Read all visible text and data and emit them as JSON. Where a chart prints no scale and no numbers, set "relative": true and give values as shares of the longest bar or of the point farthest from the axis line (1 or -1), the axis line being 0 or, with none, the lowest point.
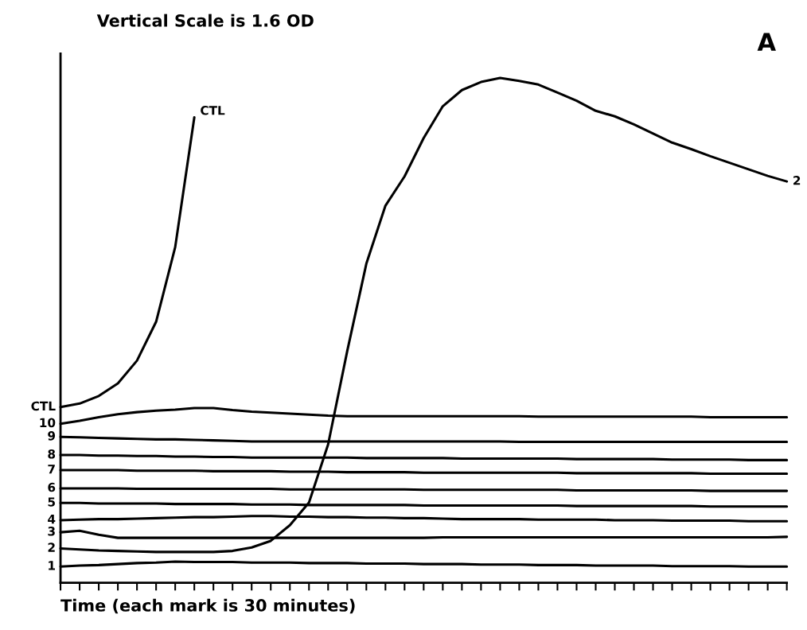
{
  "chart_data": {
    "type": "line",
    "title": "Vertical Scale is 1.6 OD",
    "xlabel": "Time (each mark is 30 minutes)",
    "relative": true,
    "categories": [
      null,
      null,
      null,
      null,
      null,
      null,
      null,
      null,
      null,
      null,
      null,
      null,
      null,
      null,
      null,
      null,
      null,
      null,
      null,
      null,
      null,
      null,
      null,
      null,
      null,
      null,
      null,
      null,
      null,
      null,
      null,
      null,
      null,
      null,
      null,
      null,
      null,
      null,
      null
    ],
    "grid": false,
    "legend": false,
    "marker": "none",
    "line_style": "solid",
    "series": [
      {
        "name": "CTL",
        "color": "#000000",
        "values": [
          0.348,
          0.355,
          0.37,
          0.395,
          0.44,
          0.517,
          0.665,
          0.922,
          null,
          null,
          null,
          null,
          null,
          null,
          null,
          null,
          null,
          null,
          null,
          null,
          null,
          null,
          null,
          null,
          null,
          null,
          null,
          null,
          null,
          null,
          null,
          null,
          null,
          null,
          null,
          null,
          null,
          null,
          null
        ]
      },
      {
        "name": "10",
        "color": "#000000",
        "values": [
          0.315,
          0.321,
          0.328,
          0.334,
          0.338,
          0.341,
          0.343,
          0.346,
          0.346,
          0.342,
          0.339,
          0.337,
          0.335,
          0.333,
          0.331,
          0.33,
          0.33,
          0.33,
          0.33,
          0.33,
          0.33,
          0.33,
          0.33,
          0.33,
          0.33,
          0.329,
          0.329,
          0.329,
          0.329,
          0.329,
          0.329,
          0.329,
          0.329,
          0.329,
          0.328,
          0.328,
          0.328,
          0.328,
          0.328
        ]
      },
      {
        "name": "9",
        "color": "#000000",
        "values": [
          0.289,
          0.288,
          0.287,
          0.286,
          0.285,
          0.284,
          0.284,
          0.283,
          0.282,
          0.281,
          0.28,
          0.28,
          0.28,
          0.28,
          0.28,
          0.28,
          0.28,
          0.28,
          0.28,
          0.28,
          0.28,
          0.28,
          0.28,
          0.28,
          0.279,
          0.279,
          0.279,
          0.279,
          0.279,
          0.279,
          0.279,
          0.279,
          0.279,
          0.279,
          0.279,
          0.279,
          0.279,
          0.279,
          0.279
        ]
      },
      {
        "name": "8",
        "color": "#000000",
        "values": [
          0.253,
          0.253,
          0.252,
          0.252,
          0.251,
          0.251,
          0.25,
          0.25,
          0.249,
          0.249,
          0.248,
          0.248,
          0.248,
          0.248,
          0.248,
          0.248,
          0.247,
          0.247,
          0.247,
          0.247,
          0.247,
          0.246,
          0.246,
          0.246,
          0.246,
          0.246,
          0.246,
          0.245,
          0.245,
          0.245,
          0.245,
          0.245,
          0.244,
          0.244,
          0.244,
          0.244,
          0.243,
          0.243,
          0.243
        ]
      },
      {
        "name": "7",
        "color": "#000000",
        "values": [
          0.223,
          0.223,
          0.223,
          0.223,
          0.222,
          0.222,
          0.222,
          0.222,
          0.221,
          0.221,
          0.221,
          0.221,
          0.22,
          0.22,
          0.22,
          0.219,
          0.219,
          0.219,
          0.219,
          0.218,
          0.218,
          0.218,
          0.218,
          0.218,
          0.218,
          0.218,
          0.218,
          0.217,
          0.217,
          0.217,
          0.217,
          0.217,
          0.217,
          0.217,
          0.216,
          0.216,
          0.216,
          0.216,
          0.216
        ]
      },
      {
        "name": "6",
        "color": "#000000",
        "values": [
          0.187,
          0.187,
          0.187,
          0.187,
          0.186,
          0.186,
          0.186,
          0.186,
          0.186,
          0.186,
          0.186,
          0.186,
          0.185,
          0.185,
          0.185,
          0.185,
          0.185,
          0.185,
          0.185,
          0.184,
          0.184,
          0.184,
          0.184,
          0.184,
          0.184,
          0.184,
          0.184,
          0.183,
          0.183,
          0.183,
          0.183,
          0.183,
          0.183,
          0.183,
          0.182,
          0.182,
          0.182,
          0.182,
          0.182
        ]
      },
      {
        "name": "5",
        "color": "#000000",
        "values": [
          0.158,
          0.158,
          0.157,
          0.157,
          0.157,
          0.157,
          0.156,
          0.156,
          0.156,
          0.156,
          0.155,
          0.155,
          0.155,
          0.154,
          0.154,
          0.154,
          0.154,
          0.154,
          0.154,
          0.153,
          0.153,
          0.153,
          0.153,
          0.153,
          0.153,
          0.153,
          0.153,
          0.152,
          0.152,
          0.152,
          0.152,
          0.152,
          0.152,
          0.152,
          0.151,
          0.151,
          0.151,
          0.151,
          0.151
        ]
      },
      {
        "name": "4",
        "color": "#000000",
        "values": [
          0.124,
          0.125,
          0.126,
          0.126,
          0.127,
          0.128,
          0.129,
          0.13,
          0.13,
          0.131,
          0.132,
          0.132,
          0.131,
          0.131,
          0.13,
          0.13,
          0.129,
          0.129,
          0.128,
          0.128,
          0.127,
          0.126,
          0.126,
          0.126,
          0.126,
          0.125,
          0.125,
          0.125,
          0.125,
          0.124,
          0.124,
          0.124,
          0.123,
          0.123,
          0.123,
          0.123,
          0.122,
          0.122,
          0.122
        ]
      },
      {
        "name": "3",
        "color": "#000000",
        "values": [
          0.1,
          0.103,
          0.095,
          0.089,
          0.089,
          0.089,
          0.089,
          0.089,
          0.089,
          0.089,
          0.089,
          0.089,
          0.089,
          0.089,
          0.089,
          0.089,
          0.089,
          0.089,
          0.089,
          0.089,
          0.09,
          0.09,
          0.09,
          0.09,
          0.09,
          0.09,
          0.09,
          0.09,
          0.09,
          0.09,
          0.09,
          0.09,
          0.09,
          0.09,
          0.09,
          0.09,
          0.09,
          0.09,
          0.091
        ]
      },
      {
        "name": "2",
        "color": "#000000",
        "values": [
          0.068,
          0.066,
          0.064,
          0.063,
          0.062,
          0.061,
          0.061,
          0.061,
          0.061,
          0.063,
          0.07,
          0.083,
          0.114,
          0.159,
          0.274,
          0.459,
          0.632,
          0.747,
          0.805,
          0.881,
          0.944,
          0.976,
          0.992,
          1,
          0.994,
          0.987,
          0.971,
          0.955,
          0.935,
          0.924,
          0.908,
          0.89,
          0.872,
          0.859,
          0.845,
          0.832,
          0.819,
          0.806,
          0.795
        ]
      },
      {
        "name": "1",
        "color": "#000000",
        "values": [
          0.032,
          0.034,
          0.035,
          0.037,
          0.039,
          0.04,
          0.042,
          0.041,
          0.041,
          0.041,
          0.04,
          0.04,
          0.04,
          0.039,
          0.039,
          0.039,
          0.038,
          0.038,
          0.038,
          0.037,
          0.037,
          0.037,
          0.036,
          0.036,
          0.036,
          0.035,
          0.035,
          0.035,
          0.034,
          0.034,
          0.034,
          0.034,
          0.033,
          0.033,
          0.033,
          0.033,
          0.032,
          0.032,
          0.032
        ]
      }
    ],
    "annotations": [
      "CTL",
      "2",
      "A"
    ]
  }
}
